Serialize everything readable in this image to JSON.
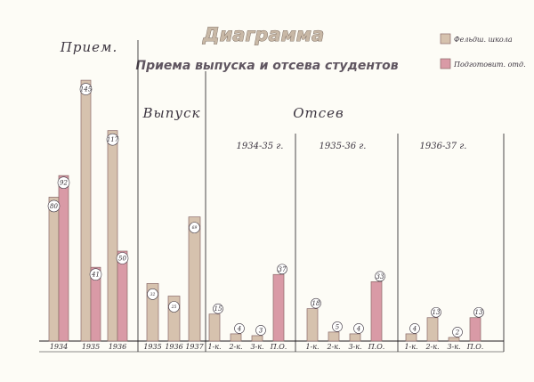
{
  "chart_data": {
    "type": "bar",
    "title": "Диаграмма",
    "subtitle": "Приема выпуска и отсева студентов",
    "colors": {
      "feldsher": "#d6c2ae",
      "medic": "#d99aa6",
      "edge": "#8a6a6a"
    },
    "legend": [
      {
        "key": "feldsher",
        "label": "Фельдш. школа"
      },
      {
        "key": "medic",
        "label": "Подготовит. отд."
      }
    ],
    "sections": {
      "priem": "Прием.",
      "vypusk": "Выпуск",
      "otsev": "Отсев"
    },
    "priem": {
      "categories": [
        "1934",
        "1935",
        "1936"
      ],
      "feldsher": [
        80,
        145,
        117
      ],
      "medic": [
        92,
        41,
        50
      ]
    },
    "vypusk": {
      "categories": [
        "1935",
        "1936",
        "1937"
      ],
      "values": [
        32,
        25,
        69
      ]
    },
    "otsev": {
      "categories": [
        "1-к.",
        "2-к.",
        "3-к.",
        "П.О."
      ],
      "groups": [
        {
          "label": "1934-35 г.",
          "values": [
            15,
            4,
            3,
            37
          ]
        },
        {
          "label": "1935-36 г.",
          "values": [
            18,
            5,
            4,
            33
          ]
        },
        {
          "label": "1936-37 г.",
          "values": [
            4,
            13,
            2,
            13
          ]
        }
      ]
    }
  }
}
